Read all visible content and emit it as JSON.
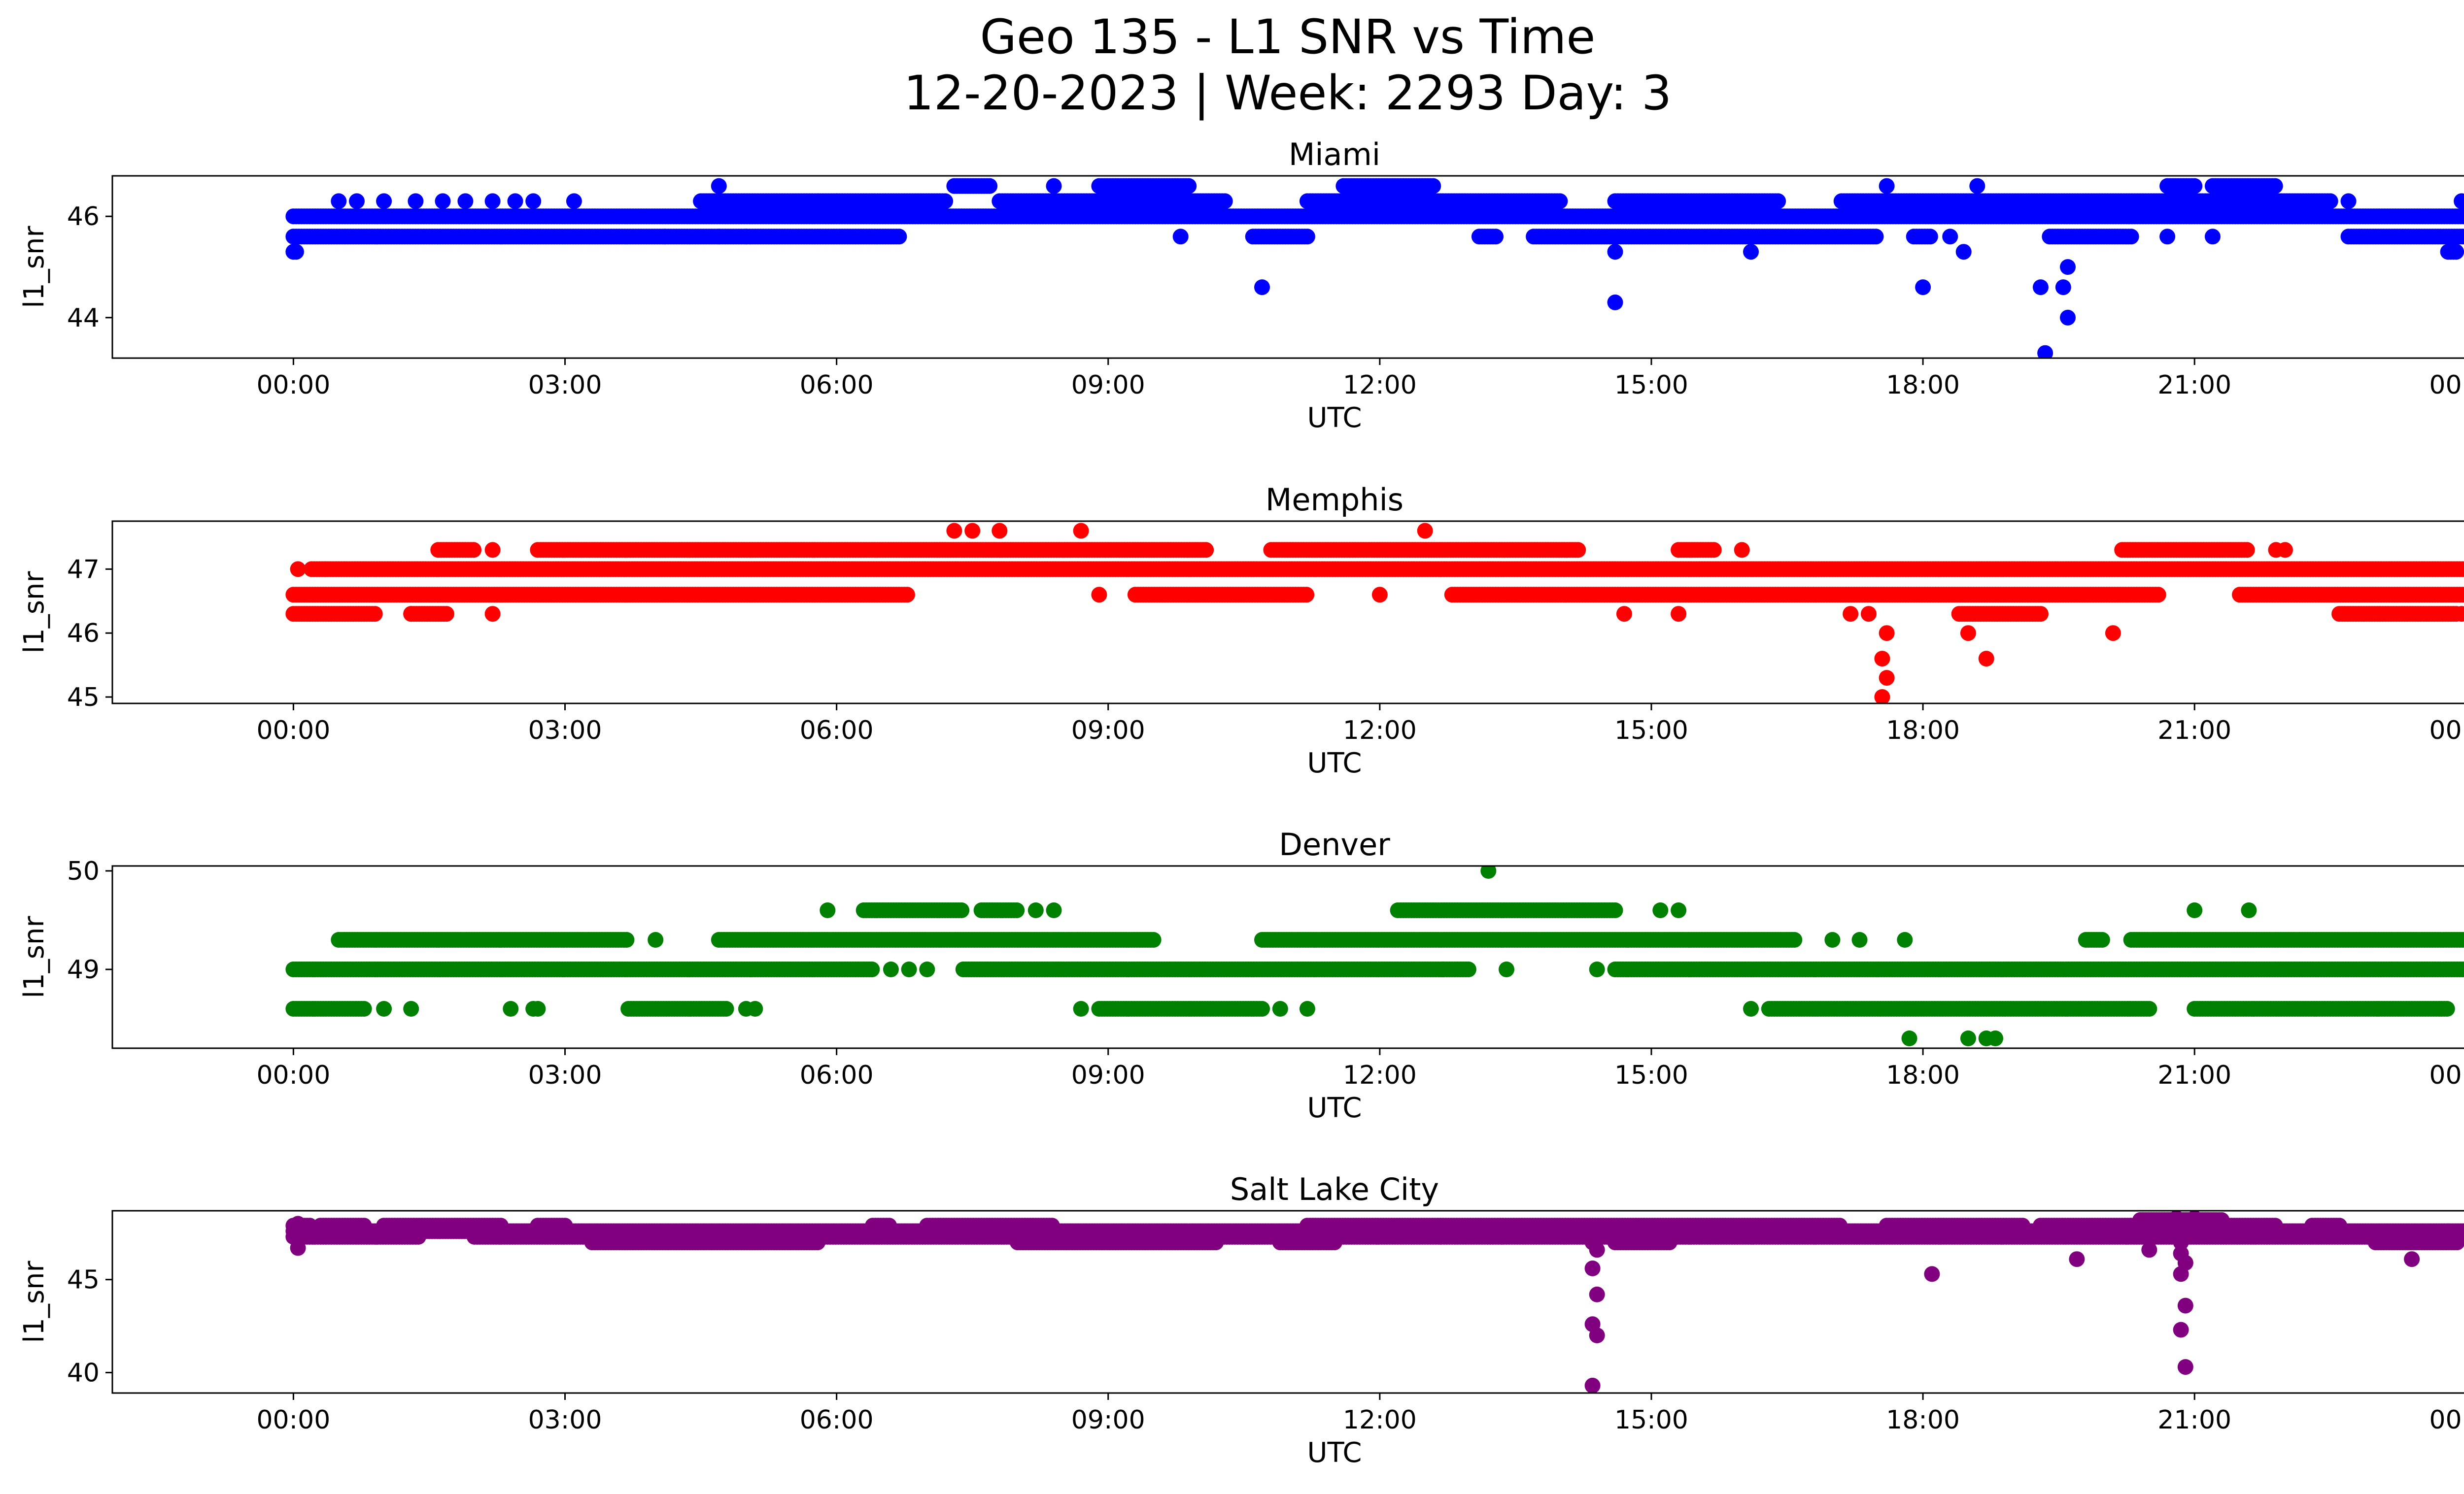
{
  "figure": {
    "title_line1": "Geo 135 - L1 SNR vs Time",
    "title_line2": "12-20-2023 | Week: 2293 Day: 3"
  },
  "chart_data": [
    {
      "type": "scatter",
      "title": "Miami",
      "xlabel": "UTC",
      "ylabel": "l1_snr",
      "color": "#0000ff",
      "xlim_hours": [
        -2.0,
        25.0
      ],
      "ylim": [
        43.2,
        46.8
      ],
      "x_ticks": [
        "00:00",
        "03:00",
        "06:00",
        "09:00",
        "12:00",
        "15:00",
        "18:00",
        "21:00",
        "00:00"
      ],
      "y_ticks": [
        44,
        46
      ],
      "bands": [
        {
          "y": 46.0,
          "segments": [
            [
              0.0,
              24.0
            ]
          ]
        },
        {
          "y": 45.6,
          "segments": [
            [
              0.0,
              6.7
            ],
            [
              10.6,
              11.2
            ],
            [
              13.1,
              13.3
            ],
            [
              13.7,
              17.5
            ],
            [
              17.9,
              18.1
            ],
            [
              19.4,
              20.3
            ],
            [
              22.7,
              24.0
            ]
          ]
        },
        {
          "y": 46.3,
          "segments": [
            [
              4.5,
              7.2
            ],
            [
              7.8,
              10.3
            ],
            [
              11.2,
              14.0
            ],
            [
              14.6,
              16.4
            ],
            [
              17.1,
              22.5
            ]
          ]
        },
        {
          "y": 46.6,
          "segments": [
            [
              7.3,
              7.7
            ],
            [
              8.9,
              9.9
            ],
            [
              11.6,
              12.6
            ],
            [
              20.7,
              21.0
            ],
            [
              21.2,
              21.9
            ]
          ]
        },
        {
          "y": 45.3,
          "segments": [
            [
              0.0,
              0.05
            ],
            [
              23.8,
              23.9
            ]
          ]
        }
      ],
      "points": [
        {
          "x": 0.5,
          "y": 46.3
        },
        {
          "x": 0.7,
          "y": 46.3
        },
        {
          "x": 1.0,
          "y": 46.3
        },
        {
          "x": 1.35,
          "y": 46.3
        },
        {
          "x": 1.65,
          "y": 46.3
        },
        {
          "x": 1.9,
          "y": 46.3
        },
        {
          "x": 2.2,
          "y": 46.3
        },
        {
          "x": 2.45,
          "y": 46.3
        },
        {
          "x": 2.65,
          "y": 46.3
        },
        {
          "x": 3.1,
          "y": 46.3
        },
        {
          "x": 4.1,
          "y": 45.6
        },
        {
          "x": 4.7,
          "y": 46.6
        },
        {
          "x": 4.7,
          "y": 45.6
        },
        {
          "x": 5.0,
          "y": 45.6
        },
        {
          "x": 5.8,
          "y": 46.3
        },
        {
          "x": 6.0,
          "y": 46.3
        },
        {
          "x": 8.4,
          "y": 46.6
        },
        {
          "x": 9.8,
          "y": 45.6
        },
        {
          "x": 10.7,
          "y": 44.6
        },
        {
          "x": 14.6,
          "y": 45.3
        },
        {
          "x": 14.6,
          "y": 44.3
        },
        {
          "x": 16.1,
          "y": 45.3
        },
        {
          "x": 17.6,
          "y": 46.6
        },
        {
          "x": 18.0,
          "y": 44.6
        },
        {
          "x": 18.3,
          "y": 45.6
        },
        {
          "x": 18.45,
          "y": 45.3
        },
        {
          "x": 18.6,
          "y": 46.6
        },
        {
          "x": 19.3,
          "y": 44.6
        },
        {
          "x": 19.35,
          "y": 43.3
        },
        {
          "x": 19.55,
          "y": 44.6
        },
        {
          "x": 19.6,
          "y": 45.0
        },
        {
          "x": 19.6,
          "y": 44.0
        },
        {
          "x": 20.7,
          "y": 45.6
        },
        {
          "x": 21.2,
          "y": 45.6
        },
        {
          "x": 22.7,
          "y": 46.3
        },
        {
          "x": 23.95,
          "y": 46.3
        }
      ]
    },
    {
      "type": "scatter",
      "title": "Memphis",
      "xlabel": "UTC",
      "ylabel": "l1_snr",
      "color": "#ff0000",
      "xlim_hours": [
        -2.0,
        25.0
      ],
      "ylim": [
        44.9,
        47.75
      ],
      "x_ticks": [
        "00:00",
        "03:00",
        "06:00",
        "09:00",
        "12:00",
        "15:00",
        "18:00",
        "21:00",
        "00:00"
      ],
      "y_ticks": [
        45,
        46,
        47
      ],
      "bands": [
        {
          "y": 47.0,
          "segments": [
            [
              0.2,
              24.0
            ]
          ]
        },
        {
          "y": 46.6,
          "segments": [
            [
              0.0,
              6.8
            ],
            [
              9.3,
              11.2
            ],
            [
              12.8,
              20.6
            ],
            [
              21.5,
              24.0
            ]
          ]
        },
        {
          "y": 47.3,
          "segments": [
            [
              1.6,
              2.0
            ],
            [
              2.7,
              10.1
            ],
            [
              10.8,
              14.2
            ],
            [
              15.3,
              15.7
            ],
            [
              20.2,
              21.6
            ]
          ]
        },
        {
          "y": 46.3,
          "segments": [
            [
              0.0,
              0.9
            ],
            [
              1.3,
              1.7
            ],
            [
              18.4,
              19.3
            ],
            [
              22.6,
              23.9
            ]
          ]
        }
      ],
      "points": [
        {
          "x": 0.05,
          "y": 47.0
        },
        {
          "x": 0.35,
          "y": 47.0
        },
        {
          "x": 1.3,
          "y": 46.3
        },
        {
          "x": 2.2,
          "y": 46.3
        },
        {
          "x": 2.2,
          "y": 47.3
        },
        {
          "x": 7.3,
          "y": 47.6
        },
        {
          "x": 7.5,
          "y": 47.6
        },
        {
          "x": 7.8,
          "y": 47.6
        },
        {
          "x": 8.7,
          "y": 47.6
        },
        {
          "x": 8.9,
          "y": 46.6
        },
        {
          "x": 12.0,
          "y": 46.6
        },
        {
          "x": 12.5,
          "y": 47.6
        },
        {
          "x": 14.7,
          "y": 46.3
        },
        {
          "x": 15.3,
          "y": 46.3
        },
        {
          "x": 16.0,
          "y": 47.3
        },
        {
          "x": 17.6,
          "y": 46.0
        },
        {
          "x": 17.55,
          "y": 45.6
        },
        {
          "x": 17.6,
          "y": 45.3
        },
        {
          "x": 17.55,
          "y": 45.0
        },
        {
          "x": 17.2,
          "y": 46.3
        },
        {
          "x": 17.4,
          "y": 46.3
        },
        {
          "x": 18.5,
          "y": 46.0
        },
        {
          "x": 18.7,
          "y": 45.6
        },
        {
          "x": 20.1,
          "y": 46.0
        },
        {
          "x": 21.9,
          "y": 47.3
        },
        {
          "x": 22.0,
          "y": 47.3
        },
        {
          "x": 23.95,
          "y": 46.3
        }
      ]
    },
    {
      "type": "scatter",
      "title": "Denver",
      "xlabel": "UTC",
      "ylabel": "l1_snr",
      "color": "#008000",
      "xlim_hours": [
        -2.0,
        25.0
      ],
      "ylim": [
        48.2,
        50.05
      ],
      "x_ticks": [
        "00:00",
        "03:00",
        "06:00",
        "09:00",
        "12:00",
        "15:00",
        "18:00",
        "21:00",
        "00:00"
      ],
      "y_ticks": [
        49,
        50
      ],
      "bands": [
        {
          "y": 49.0,
          "segments": [
            [
              0.0,
              6.4
            ],
            [
              7.4,
              13.0
            ],
            [
              14.6,
              24.0
            ]
          ]
        },
        {
          "y": 49.3,
          "segments": [
            [
              0.5,
              3.7
            ],
            [
              4.7,
              9.5
            ],
            [
              10.7,
              16.6
            ],
            [
              19.8,
              20.0
            ],
            [
              20.3,
              24.0
            ]
          ]
        },
        {
          "y": 48.6,
          "segments": [
            [
              0.0,
              0.8
            ],
            [
              3.7,
              4.8
            ],
            [
              8.9,
              10.7
            ],
            [
              16.3,
              20.5
            ],
            [
              21.0,
              23.8
            ]
          ]
        },
        {
          "y": 49.6,
          "segments": [
            [
              6.3,
              7.4
            ],
            [
              7.6,
              8.0
            ],
            [
              12.2,
              14.6
            ]
          ]
        }
      ],
      "points": [
        {
          "x": 1.0,
          "y": 48.6
        },
        {
          "x": 1.3,
          "y": 48.6
        },
        {
          "x": 2.4,
          "y": 48.6
        },
        {
          "x": 2.65,
          "y": 48.6
        },
        {
          "x": 2.7,
          "y": 48.6
        },
        {
          "x": 4.0,
          "y": 49.3
        },
        {
          "x": 5.0,
          "y": 48.6
        },
        {
          "x": 5.1,
          "y": 48.6
        },
        {
          "x": 5.9,
          "y": 49.6
        },
        {
          "x": 6.6,
          "y": 49.0
        },
        {
          "x": 6.8,
          "y": 49.0
        },
        {
          "x": 7.0,
          "y": 49.0
        },
        {
          "x": 8.2,
          "y": 49.6
        },
        {
          "x": 8.4,
          "y": 49.6
        },
        {
          "x": 8.7,
          "y": 48.6
        },
        {
          "x": 10.9,
          "y": 48.6
        },
        {
          "x": 11.2,
          "y": 48.6
        },
        {
          "x": 12.7,
          "y": 49.0
        },
        {
          "x": 13.2,
          "y": 50.0
        },
        {
          "x": 13.4,
          "y": 49.0
        },
        {
          "x": 14.4,
          "y": 49.0
        },
        {
          "x": 15.1,
          "y": 49.6
        },
        {
          "x": 15.3,
          "y": 49.6
        },
        {
          "x": 16.1,
          "y": 48.6
        },
        {
          "x": 17.0,
          "y": 49.3
        },
        {
          "x": 17.3,
          "y": 49.3
        },
        {
          "x": 17.8,
          "y": 49.3
        },
        {
          "x": 17.85,
          "y": 48.3
        },
        {
          "x": 18.5,
          "y": 48.3
        },
        {
          "x": 18.7,
          "y": 48.3
        },
        {
          "x": 18.8,
          "y": 48.3
        },
        {
          "x": 21.0,
          "y": 49.6
        },
        {
          "x": 21.6,
          "y": 49.6
        }
      ]
    },
    {
      "type": "scatter",
      "title": "Salt Lake City",
      "xlabel": "UTC",
      "ylabel": "l1_snr",
      "color": "#800080",
      "xlim_hours": [
        -2.0,
        25.0
      ],
      "ylim": [
        38.9,
        48.7
      ],
      "x_ticks": [
        "00:00",
        "03:00",
        "06:00",
        "09:00",
        "12:00",
        "15:00",
        "18:00",
        "21:00",
        "00:00"
      ],
      "y_ticks": [
        40,
        45
      ],
      "bands": [
        {
          "y": 47.6,
          "segments": [
            [
              0.0,
              24.0
            ]
          ]
        },
        {
          "y": 47.3,
          "segments": [
            [
              0.0,
              1.4
            ],
            [
              2.0,
              24.0
            ]
          ]
        },
        {
          "y": 47.0,
          "segments": [
            [
              3.3,
              5.8
            ],
            [
              8.0,
              10.2
            ],
            [
              10.9,
              11.5
            ],
            [
              14.6,
              15.2
            ],
            [
              23.0,
              23.9
            ]
          ]
        },
        {
          "y": 47.9,
          "segments": [
            [
              0.0,
              0.2
            ],
            [
              0.3,
              0.8
            ],
            [
              1.0,
              2.3
            ],
            [
              2.7,
              3.0
            ],
            [
              6.4,
              6.6
            ],
            [
              7.0,
              8.4
            ],
            [
              11.2,
              17.1
            ],
            [
              17.6,
              19.1
            ],
            [
              19.3,
              20.3
            ],
            [
              20.3,
              21.9
            ],
            [
              22.3,
              22.6
            ]
          ]
        },
        {
          "y": 48.2,
          "segments": [
            [
              20.4,
              21.3
            ]
          ]
        }
      ],
      "points": [
        {
          "x": 0.05,
          "y": 46.7
        },
        {
          "x": 0.05,
          "y": 48.0
        },
        {
          "x": 14.35,
          "y": 47.0
        },
        {
          "x": 14.4,
          "y": 46.6
        },
        {
          "x": 14.35,
          "y": 45.6
        },
        {
          "x": 14.4,
          "y": 44.2
        },
        {
          "x": 14.35,
          "y": 42.6
        },
        {
          "x": 14.4,
          "y": 42.0
        },
        {
          "x": 14.35,
          "y": 39.3
        },
        {
          "x": 18.1,
          "y": 45.3
        },
        {
          "x": 19.7,
          "y": 46.1
        },
        {
          "x": 20.5,
          "y": 46.6
        },
        {
          "x": 20.85,
          "y": 47.0
        },
        {
          "x": 20.85,
          "y": 46.4
        },
        {
          "x": 20.9,
          "y": 45.9
        },
        {
          "x": 20.85,
          "y": 45.3
        },
        {
          "x": 20.9,
          "y": 43.6
        },
        {
          "x": 20.85,
          "y": 42.3
        },
        {
          "x": 20.9,
          "y": 40.3
        },
        {
          "x": 20.8,
          "y": 48.3
        },
        {
          "x": 21.0,
          "y": 48.3
        },
        {
          "x": 23.4,
          "y": 46.1
        },
        {
          "x": 23.8,
          "y": 47.6
        }
      ]
    }
  ]
}
